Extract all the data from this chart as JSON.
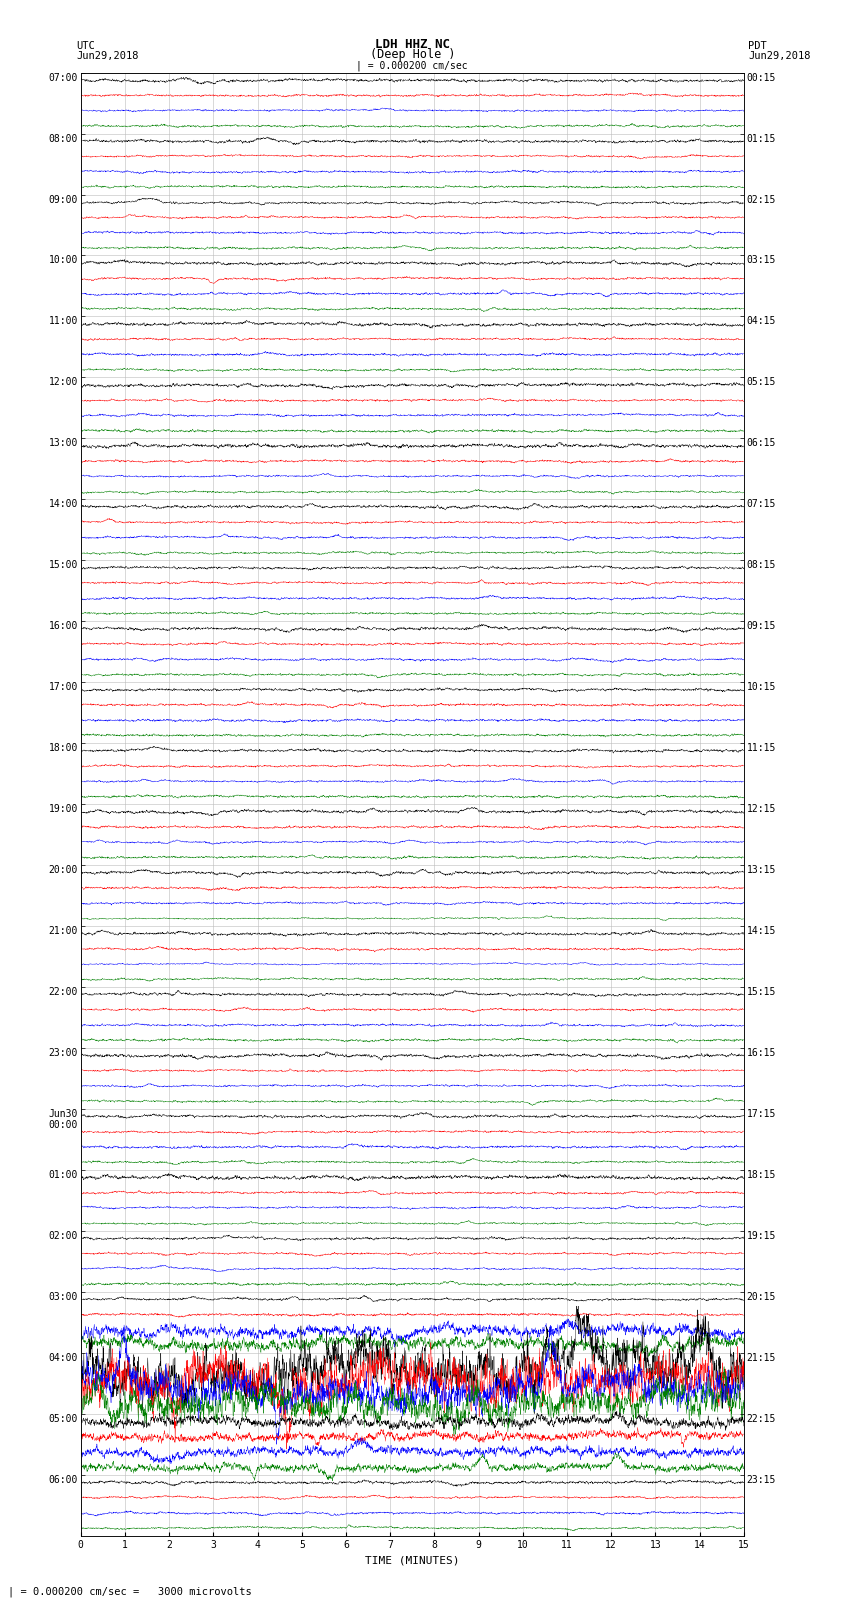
{
  "title_line1": "LDH HHZ NC",
  "title_line2": "(Deep Hole )",
  "scale_label": "| = 0.000200 cm/sec",
  "bottom_note": "| = 0.000200 cm/sec =   3000 microvolts",
  "xlabel": "TIME (MINUTES)",
  "colors": [
    "black",
    "red",
    "blue",
    "green"
  ],
  "bg_color": "#ffffff",
  "grid_color": "#aaaaaa",
  "utc_labels": [
    "07:00",
    "08:00",
    "09:00",
    "10:00",
    "11:00",
    "12:00",
    "13:00",
    "14:00",
    "15:00",
    "16:00",
    "17:00",
    "18:00",
    "19:00",
    "20:00",
    "21:00",
    "22:00",
    "23:00",
    "Jun30\n00:00",
    "01:00",
    "02:00",
    "03:00",
    "04:00",
    "05:00",
    "06:00"
  ],
  "pdt_labels": [
    "00:15",
    "01:15",
    "02:15",
    "03:15",
    "04:15",
    "05:15",
    "06:15",
    "07:15",
    "08:15",
    "09:15",
    "10:15",
    "11:15",
    "12:15",
    "13:15",
    "14:15",
    "15:15",
    "16:15",
    "17:15",
    "18:15",
    "19:15",
    "20:15",
    "21:15",
    "22:15",
    "23:15"
  ],
  "n_hours": 24,
  "traces_per_hour": 4,
  "minutes": 15,
  "figsize": [
    8.5,
    16.13
  ],
  "dpi": 100,
  "earthquake_hour": 21,
  "earthquake_hour2": 22
}
